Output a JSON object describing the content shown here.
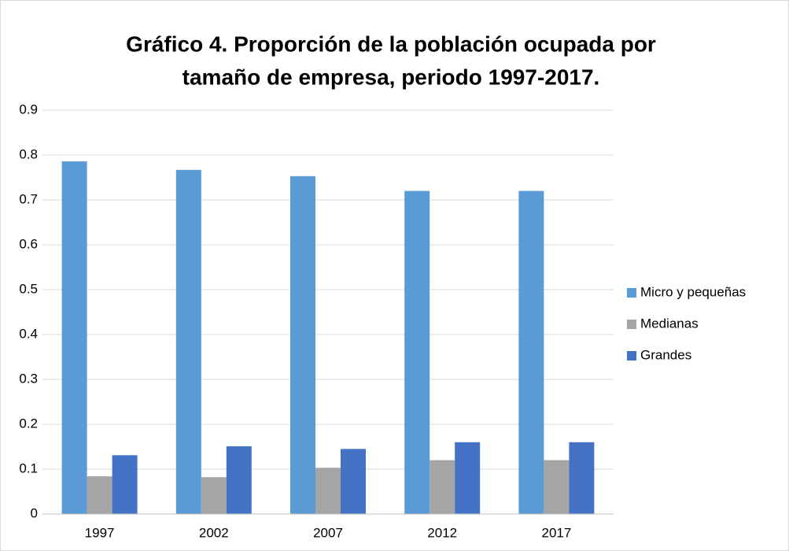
{
  "chart_data": {
    "type": "bar",
    "title": [
      "Gráfico 4. Proporción de la población ocupada por",
      "tamaño de empresa, periodo 1997-2017."
    ],
    "categories": [
      "1997",
      "2002",
      "2007",
      "2012",
      "2017"
    ],
    "series": [
      {
        "name": "Micro y pequeñas",
        "color": "#5b9bd5",
        "values": [
          0.786,
          0.767,
          0.753,
          0.72,
          0.72
        ]
      },
      {
        "name": "Medianas",
        "color": "#a5a5a5",
        "values": [
          0.084,
          0.082,
          0.103,
          0.12,
          0.12
        ]
      },
      {
        "name": "Grandes",
        "color": "#4472c4",
        "values": [
          0.131,
          0.151,
          0.145,
          0.16,
          0.16
        ]
      }
    ],
    "ylim": [
      0,
      0.9
    ],
    "yticks": [
      0,
      0.1,
      0.2,
      0.3,
      0.4,
      0.5,
      0.6,
      0.7,
      0.8,
      0.9
    ],
    "grid": true,
    "legend": "right"
  }
}
